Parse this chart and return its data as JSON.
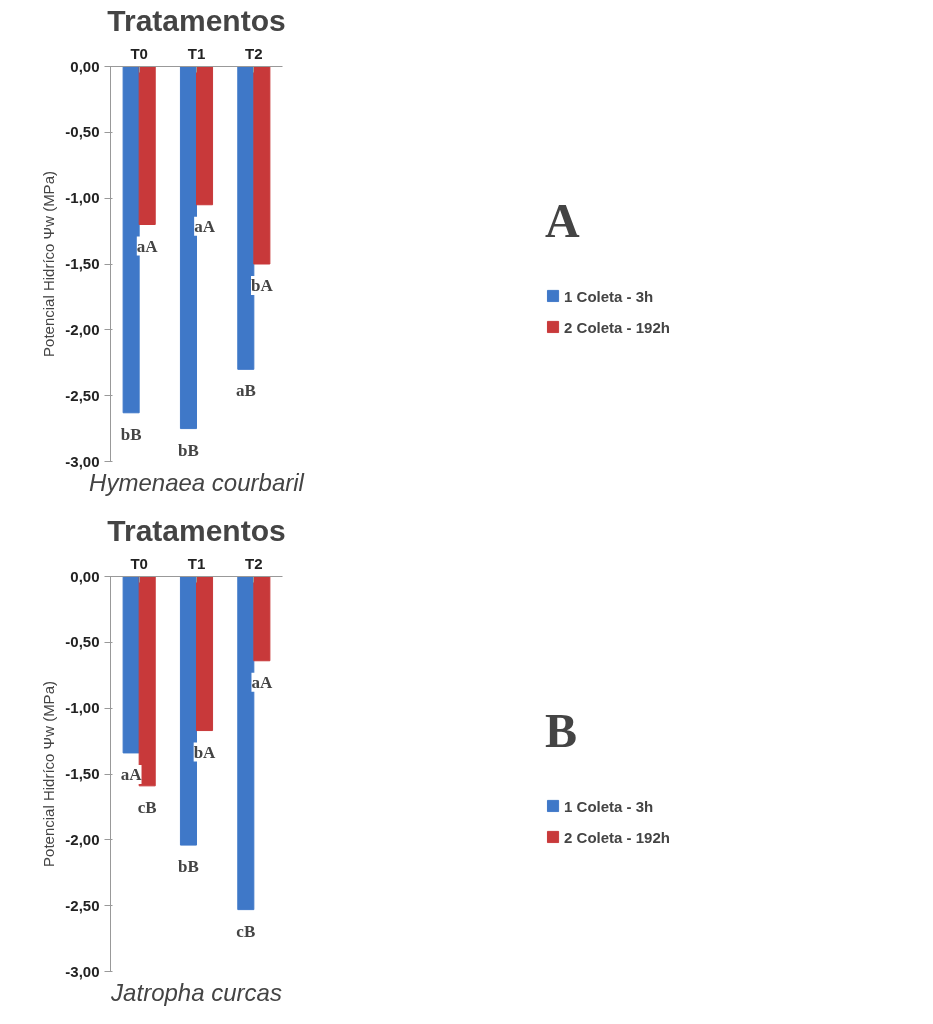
{
  "chart_data": [
    {
      "type": "bar",
      "title": "Tratamentos",
      "xlabel": "Hymenaea courbaril",
      "ylabel": "Potencial Hidríco Ψw (MPa)",
      "categories": [
        "T0",
        "T1",
        "T2"
      ],
      "series": [
        {
          "name": "1 Coleta - 3h",
          "color": "#3f78c8",
          "values": [
            -2.63,
            -2.75,
            -2.3
          ]
        },
        {
          "name": "2 Coleta - 192h",
          "color": "#c8393a",
          "values": [
            -1.2,
            -1.05,
            -1.5
          ]
        }
      ],
      "ylim": [
        -3,
        0
      ],
      "yticks": [
        {
          "value": 0,
          "label": "0,00"
        },
        {
          "value": -0.5,
          "label": "-0,50"
        },
        {
          "value": -1,
          "label": "-1,00"
        },
        {
          "value": -1.5,
          "label": "-1,50"
        },
        {
          "value": -2,
          "label": "-2,00"
        },
        {
          "value": -2.5,
          "label": "-2,50"
        },
        {
          "value": -3,
          "label": "-3,00"
        }
      ],
      "grid": false,
      "legend": "right",
      "annotations": [
        "A",
        {
          "text": "bB",
          "x": "T0",
          "y": -2.63
        },
        {
          "text": "aA",
          "x": "T0",
          "y": -1.2
        },
        {
          "text": "bB",
          "x": "T1",
          "y": -2.75
        },
        {
          "text": "aA",
          "x": "T1",
          "y": -1.05
        },
        {
          "text": "aB",
          "x": "T2",
          "y": -2.3
        },
        {
          "text": "bA",
          "x": "T2",
          "y": -1.5
        }
      ]
    },
    {
      "type": "bar",
      "title": "Tratamentos",
      "xlabel": "Jatropha curcas",
      "ylabel": "Potencial Hidríco Ψw (MPa)",
      "categories": [
        "T0",
        "T1",
        "T2"
      ],
      "series": [
        {
          "name": "1 Coleta - 3h",
          "color": "#3f78c8",
          "values": [
            -1.34,
            -2.04,
            -2.53
          ]
        },
        {
          "name": "2 Coleta - 192h",
          "color": "#c8393a",
          "values": [
            -1.59,
            -1.17,
            -0.64
          ]
        }
      ],
      "ylim": [
        -3,
        0
      ],
      "yticks": [
        {
          "value": 0,
          "label": "0,00"
        },
        {
          "value": -0.5,
          "label": "-0,50"
        },
        {
          "value": -1,
          "label": "-1,00"
        },
        {
          "value": -1.5,
          "label": "-1,50"
        },
        {
          "value": -2,
          "label": "-2,00"
        },
        {
          "value": -2.5,
          "label": "-2,50"
        },
        {
          "value": -3,
          "label": "-3,00"
        }
      ],
      "grid": false,
      "legend": "right",
      "annotations": [
        "B",
        {
          "text": "aA",
          "x": "T0",
          "y": -1.34
        },
        {
          "text": "cB",
          "x": "T0",
          "y": -1.59
        },
        {
          "text": "bB",
          "x": "T1",
          "y": -2.04
        },
        {
          "text": "bA",
          "x": "T1",
          "y": -1.17
        },
        {
          "text": "cB",
          "x": "T2",
          "y": -2.53
        },
        {
          "text": "aA",
          "x": "T2",
          "y": -0.64
        }
      ]
    }
  ]
}
